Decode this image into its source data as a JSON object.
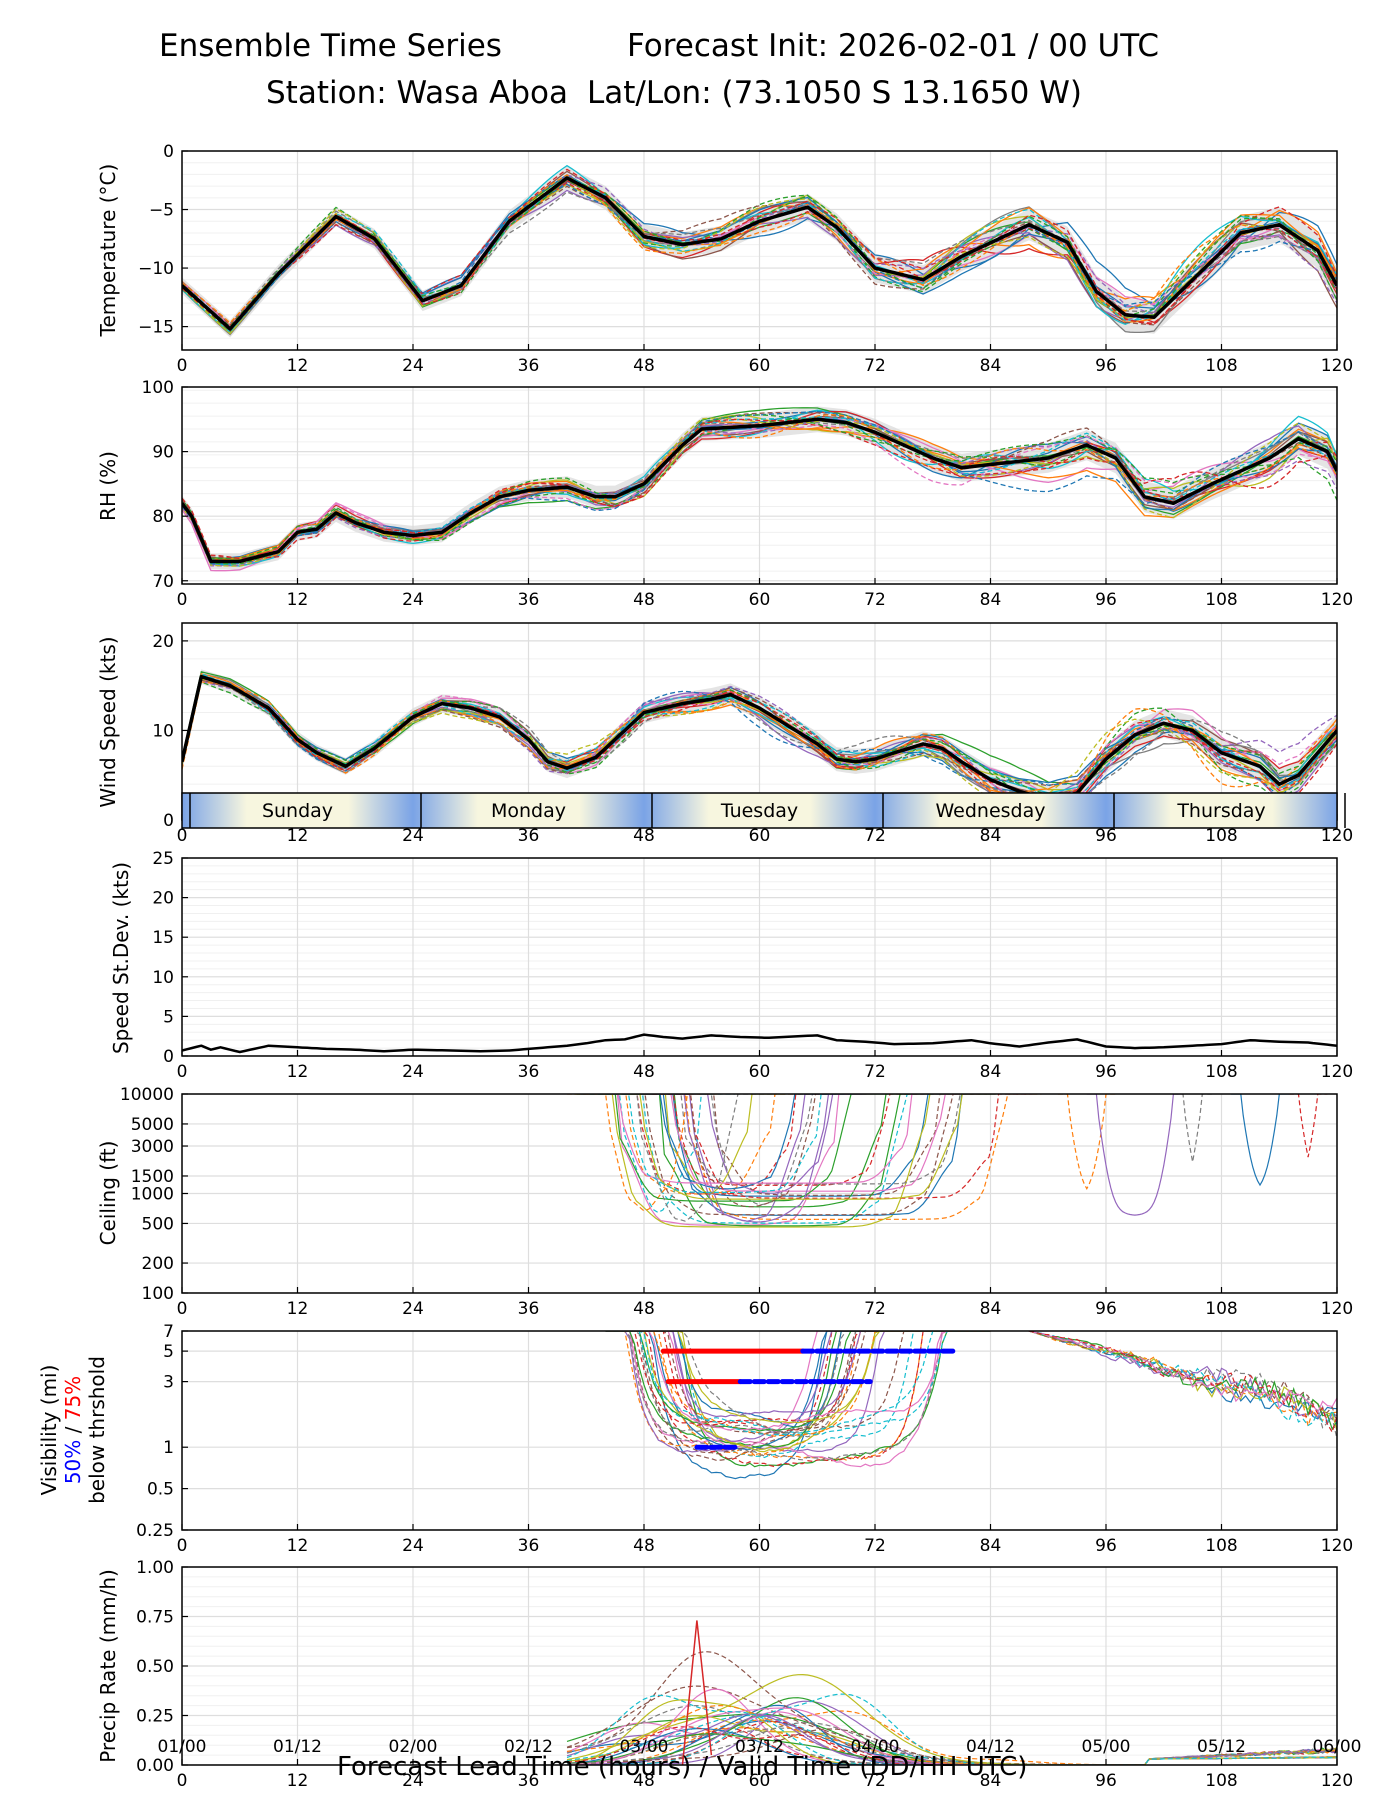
{
  "header": {
    "title_left": "Ensemble Time Series",
    "title_right": "Forecast Init: 2026-02-01 / 00 UTC",
    "station": "Station: Wasa Aboa",
    "latlon": "Lat/Lon: (73.1050 S 13.1650 W)"
  },
  "x_axis": {
    "label": "Forecast Lead Time (hours) / Valid Time (DD/HH UTC)",
    "hour_ticks": [
      0,
      12,
      24,
      36,
      48,
      60,
      72,
      84,
      96,
      108,
      120
    ],
    "valid_ticks": [
      "01/00",
      "01/12",
      "02/00",
      "02/12",
      "03/00",
      "03/12",
      "04/00",
      "04/12",
      "05/00",
      "05/12",
      "06/00"
    ],
    "range": [
      0,
      120
    ]
  },
  "day_bar": {
    "days": [
      "Sunday",
      "Monday",
      "Tuesday",
      "Wednesday",
      "Thursday"
    ]
  },
  "colors": {
    "ens": [
      "#1f77b4",
      "#ff7f0e",
      "#2ca02c",
      "#d62728",
      "#9467bd",
      "#8c564b",
      "#e377c2",
      "#7f7f7f",
      "#bcbd22",
      "#17becf"
    ],
    "mean": "#000000",
    "spread_fill": "#d9d9d9",
    "vis_50": "#0000ff",
    "vis_75": "#ff0000"
  },
  "vis_label": {
    "l1": "Visibility (mi)",
    "p50": "50%",
    "sep": " / ",
    "p75": "75%",
    "l3": "below thrshold"
  },
  "chart_data": [
    {
      "type": "line",
      "name": "temperature",
      "ylabel": "Temperature (°C)",
      "ylim": [
        -17,
        0
      ],
      "yticks": [
        0,
        -5,
        -10,
        -15
      ],
      "ytick_labels": [
        "0",
        "−5",
        "−10",
        "−15"
      ],
      "mean": {
        "x": [
          0,
          5,
          10,
          16,
          20,
          25,
          29,
          34,
          40,
          44,
          48,
          52,
          56,
          60,
          65,
          68,
          72,
          77,
          81,
          88,
          92,
          95,
          98,
          101,
          105,
          110,
          114,
          118,
          120
        ],
        "y": [
          -11.5,
          -15.2,
          -10.5,
          -5.6,
          -7.5,
          -12.8,
          -11.5,
          -6,
          -2.3,
          -4,
          -7.3,
          -8,
          -7.5,
          -6,
          -4.8,
          -6.5,
          -10,
          -11,
          -9,
          -6.3,
          -7.8,
          -12,
          -14,
          -14.2,
          -11,
          -7,
          -6.3,
          -8.5,
          -11.5
        ]
      },
      "spread": 0.7
    },
    {
      "type": "line",
      "name": "relative_humidity",
      "ylabel": "RH (%)",
      "ylim": [
        69.5,
        100
      ],
      "yticks": [
        70,
        80,
        90,
        100
      ],
      "ytick_labels": [
        "70",
        "80",
        "90",
        "100"
      ],
      "mean": {
        "x": [
          0,
          1,
          3,
          6,
          10,
          12,
          14,
          16,
          18,
          21,
          24,
          27,
          30,
          33,
          36,
          40,
          43,
          45,
          48,
          50,
          52,
          54,
          60,
          63,
          66,
          69,
          72,
          75,
          78,
          81,
          84,
          87,
          90,
          94,
          97,
          100,
          103,
          107,
          110,
          113,
          116,
          119,
          120
        ],
        "y": [
          82,
          80,
          73,
          73,
          74.5,
          77.5,
          78,
          80.5,
          79,
          77.5,
          77,
          77.5,
          80.5,
          83,
          84,
          84.5,
          83,
          83,
          85,
          88,
          91,
          93.5,
          94,
          94.5,
          95,
          94.5,
          93,
          91,
          89,
          87.5,
          88,
          88.5,
          89,
          91,
          89,
          83,
          82,
          85,
          87,
          89,
          92,
          90,
          87
        ]
      },
      "spread": 1.2
    },
    {
      "type": "line",
      "name": "wind_speed",
      "ylabel": "Wind Speed (kts)",
      "ylim": [
        0,
        22
      ],
      "yticks": [
        0,
        10,
        20
      ],
      "ytick_labels": [
        "0",
        "10",
        "20"
      ],
      "mean": {
        "x": [
          0,
          2,
          5,
          9,
          12,
          14,
          17,
          20,
          24,
          27,
          30,
          33,
          36,
          38,
          40,
          43,
          48,
          52,
          55,
          57,
          60,
          63,
          66,
          68,
          70,
          72,
          74,
          77,
          79,
          81,
          84,
          87,
          90,
          93,
          96,
          99,
          102,
          105,
          108,
          112,
          114,
          116,
          118,
          120
        ],
        "y": [
          6.5,
          16,
          15,
          12.5,
          9,
          7.5,
          6,
          8,
          11.5,
          13,
          12.5,
          11.5,
          9,
          6.5,
          5.8,
          7,
          12,
          13,
          13.5,
          14,
          12.5,
          10.5,
          8.5,
          6.8,
          6.5,
          6.8,
          7.5,
          8.5,
          8,
          6.5,
          4.5,
          3.2,
          2.3,
          3,
          6.8,
          9.5,
          10.8,
          10,
          7.5,
          6,
          4,
          5,
          7.5,
          10
        ]
      },
      "spread": 0.8
    },
    {
      "type": "line",
      "name": "speed_std_dev",
      "ylabel": "Speed St.Dev. (kts)",
      "ylim": [
        0,
        25
      ],
      "yticks": [
        0,
        5,
        10,
        15,
        20,
        25
      ],
      "ytick_labels": [
        "0",
        "5",
        "10",
        "15",
        "20",
        "25"
      ],
      "mean": {
        "x": [
          0,
          2,
          3,
          4,
          6,
          9,
          12,
          15,
          18,
          21,
          24,
          28,
          31,
          34,
          36,
          38,
          40,
          42,
          44,
          46,
          48,
          50,
          52,
          55,
          58,
          61,
          64,
          66,
          68,
          71,
          74,
          78,
          80,
          82,
          84,
          87,
          90,
          93,
          96,
          99,
          102,
          105,
          108,
          111,
          114,
          117,
          120
        ],
        "y": [
          0.7,
          1.3,
          0.8,
          1.1,
          0.5,
          1.3,
          1.1,
          0.9,
          0.8,
          0.6,
          0.8,
          0.7,
          0.6,
          0.7,
          0.9,
          1.1,
          1.3,
          1.6,
          2.0,
          2.1,
          2.7,
          2.4,
          2.2,
          2.6,
          2.4,
          2.3,
          2.5,
          2.6,
          2.0,
          1.8,
          1.5,
          1.6,
          1.8,
          2.0,
          1.6,
          1.2,
          1.7,
          2.1,
          1.2,
          1.0,
          1.1,
          1.3,
          1.5,
          2.0,
          1.8,
          1.7,
          1.3
        ]
      }
    },
    {
      "type": "line",
      "name": "ceiling",
      "ylabel": "Ceiling (ft)",
      "yscale": "log",
      "ylim": [
        100,
        10000
      ],
      "yticks": [
        100,
        200,
        500,
        1000,
        1500,
        3000,
        5000,
        10000
      ],
      "ytick_labels": [
        "100",
        "200",
        "500",
        "1000",
        "1500",
        "3000",
        "5000",
        "10000"
      ]
    },
    {
      "type": "line",
      "name": "visibility",
      "yscale": "log",
      "ylim": [
        0.25,
        7
      ],
      "yticks": [
        0.25,
        0.5,
        1,
        3,
        5,
        7
      ],
      "ytick_labels": [
        "0.25",
        "0.5",
        "1",
        "3",
        "5",
        "7"
      ],
      "threshold_bars": [
        {
          "y": 5,
          "segments": [
            {
              "x0": 50,
              "x1": 64.5,
              "p": 75
            },
            {
              "x0": 64.5,
              "x1": 80.5,
              "p": 50
            }
          ]
        },
        {
          "y": 3,
          "segments": [
            {
              "x0": 50.5,
              "x1": 58,
              "p": 75
            },
            {
              "x0": 58,
              "x1": 71.5,
              "p": 50
            }
          ]
        },
        {
          "y": 1,
          "segments": [
            {
              "x0": 53.5,
              "x1": 57.5,
              "p": 50
            }
          ]
        }
      ]
    },
    {
      "type": "line",
      "name": "precip_rate",
      "ylabel": "Precip Rate (mm/h)",
      "ylim": [
        0,
        1
      ],
      "yticks": [
        0,
        0.25,
        0.5,
        0.75,
        1
      ],
      "ytick_labels": [
        "0.00",
        "0.25",
        "0.50",
        "0.75",
        "1.00"
      ]
    }
  ]
}
